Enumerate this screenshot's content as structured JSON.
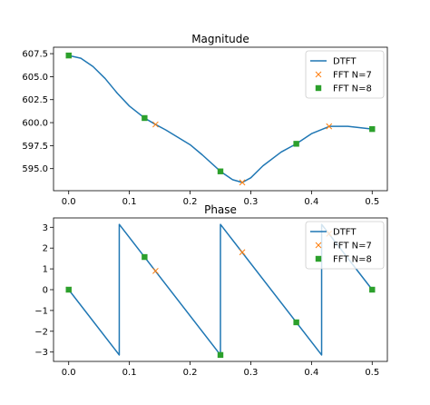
{
  "chart_data": [
    {
      "type": "line",
      "title": "Magnitude",
      "xlabel": "",
      "ylabel": "",
      "xlim": [
        -0.025,
        0.525
      ],
      "ylim": [
        592.6,
        608.2
      ],
      "xticks": [
        0.0,
        0.1,
        0.2,
        0.3,
        0.4,
        0.5
      ],
      "xtick_labels": [
        "0.0",
        "0.1",
        "0.2",
        "0.3",
        "0.4",
        "0.5"
      ],
      "yticks": [
        595.0,
        597.5,
        600.0,
        602.5,
        605.0,
        607.5
      ],
      "ytick_labels": [
        "595.0",
        "597.5",
        "600.0",
        "602.5",
        "605.0",
        "607.5"
      ],
      "legend": "upper-right",
      "grid": false,
      "series": [
        {
          "name": "DTFT",
          "style": "line",
          "color": "#1f77b4",
          "x": [
            0.0,
            0.02,
            0.04,
            0.06,
            0.08,
            0.1,
            0.125,
            0.143,
            0.16,
            0.18,
            0.2,
            0.22,
            0.25,
            0.27,
            0.286,
            0.3,
            0.32,
            0.35,
            0.375,
            0.4,
            0.43,
            0.46,
            0.5
          ],
          "y": [
            607.3,
            607.0,
            606.1,
            604.8,
            603.2,
            601.8,
            600.5,
            599.8,
            599.2,
            598.4,
            597.6,
            596.5,
            594.7,
            593.8,
            593.5,
            594.0,
            595.3,
            596.8,
            597.7,
            598.8,
            599.6,
            599.6,
            599.3
          ]
        },
        {
          "name": "FFT N=7",
          "style": "x",
          "color": "#ff7f0e",
          "x": [
            0.0,
            0.143,
            0.286,
            0.429
          ],
          "y": [
            607.3,
            599.8,
            593.5,
            599.6
          ]
        },
        {
          "name": "FFT N=8",
          "style": "square",
          "color": "#2ca02c",
          "x": [
            0.0,
            0.125,
            0.25,
            0.375,
            0.5
          ],
          "y": [
            607.3,
            600.5,
            594.7,
            597.7,
            599.3
          ]
        }
      ]
    },
    {
      "type": "line",
      "title": "Phase",
      "xlabel": "",
      "ylabel": "",
      "xlim": [
        -0.025,
        0.525
      ],
      "ylim": [
        -3.45,
        3.45
      ],
      "xticks": [
        0.0,
        0.1,
        0.2,
        0.3,
        0.4,
        0.5
      ],
      "xtick_labels": [
        "0.0",
        "0.1",
        "0.2",
        "0.3",
        "0.4",
        "0.5"
      ],
      "yticks": [
        -3,
        -2,
        -1,
        0,
        1,
        2,
        3
      ],
      "ytick_labels": [
        "−3",
        "−2",
        "−1",
        "0",
        "1",
        "2",
        "3"
      ],
      "legend": "upper-right",
      "grid": false,
      "series": [
        {
          "name": "DTFT",
          "style": "line",
          "color": "#1f77b4",
          "x": [
            0.0,
            0.0833,
            0.0833,
            0.25,
            0.25,
            0.4167,
            0.4167,
            0.5
          ],
          "y": [
            0.0,
            -3.14,
            3.14,
            -3.14,
            3.14,
            -3.14,
            3.14,
            0.0
          ]
        },
        {
          "name": "FFT N=7",
          "style": "x",
          "color": "#ff7f0e",
          "x": [
            0.0,
            0.143,
            0.286,
            0.429
          ],
          "y": [
            0.0,
            0.9,
            1.8,
            2.69
          ]
        },
        {
          "name": "FFT N=8",
          "style": "square",
          "color": "#2ca02c",
          "x": [
            0.0,
            0.125,
            0.25,
            0.375,
            0.5
          ],
          "y": [
            0.0,
            1.57,
            -3.14,
            -1.57,
            0.0
          ]
        }
      ]
    }
  ]
}
